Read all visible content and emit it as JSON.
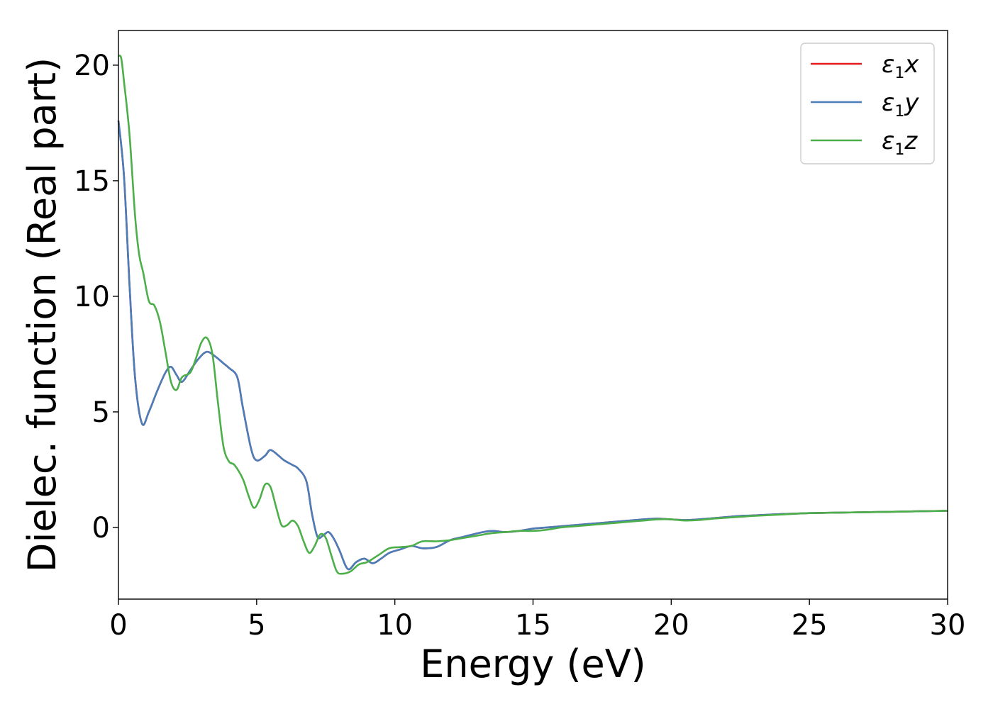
{
  "chart_data": {
    "type": "line",
    "xlabel": "Energy (eV)",
    "ylabel": "Dielec. function (Real part)",
    "xlim": [
      0,
      30
    ],
    "ylim": [
      -3.1,
      21.5
    ],
    "xticks": [
      0,
      5,
      10,
      15,
      20,
      25,
      30
    ],
    "yticks": [
      0,
      5,
      10,
      15,
      20
    ],
    "grid": false,
    "legend_position": "top-right",
    "series": [
      {
        "name": "ε1x",
        "legend_base": "ε",
        "legend_sub": "1",
        "legend_var": "x",
        "color": "#e41a1c",
        "x": [
          0,
          0.2,
          0.4,
          0.6,
          0.85,
          1.1,
          1.4,
          1.7,
          1.9,
          2.1,
          2.3,
          2.6,
          2.9,
          3.2,
          3.5,
          3.8,
          4.0,
          4.3,
          4.5,
          4.8,
          5.0,
          5.3,
          5.5,
          5.8,
          6.0,
          6.3,
          6.5,
          6.8,
          7.0,
          7.2,
          7.4,
          7.6,
          7.8,
          8.0,
          8.3,
          8.6,
          8.9,
          9.2,
          9.5,
          9.8,
          10.2,
          10.6,
          11.0,
          11.5,
          12.0,
          12.5,
          13.0,
          13.5,
          14.0,
          14.5,
          15.0,
          15.5,
          16.0,
          16.5,
          17.0,
          17.5,
          18.0,
          18.5,
          19.0,
          19.5,
          20.0,
          20.5,
          21.0,
          21.5,
          22.0,
          22.5,
          23.0,
          24.0,
          25.0,
          26.0,
          27.0,
          28.0,
          29.0,
          30.0
        ],
        "y": [
          17.6,
          15.2,
          10.5,
          6.5,
          4.5,
          5.0,
          5.9,
          6.7,
          6.95,
          6.6,
          6.3,
          6.8,
          7.3,
          7.6,
          7.4,
          7.1,
          6.9,
          6.5,
          5.2,
          3.4,
          2.9,
          3.1,
          3.35,
          3.1,
          2.9,
          2.7,
          2.55,
          2.0,
          0.6,
          -0.4,
          -0.35,
          -0.2,
          -0.5,
          -1.0,
          -1.8,
          -1.5,
          -1.35,
          -1.55,
          -1.35,
          -1.1,
          -0.95,
          -0.8,
          -0.9,
          -0.85,
          -0.55,
          -0.4,
          -0.25,
          -0.15,
          -0.2,
          -0.15,
          -0.05,
          0.0,
          0.05,
          0.1,
          0.15,
          0.2,
          0.25,
          0.3,
          0.35,
          0.38,
          0.35,
          0.32,
          0.35,
          0.4,
          0.45,
          0.5,
          0.52,
          0.58,
          0.62,
          0.64,
          0.66,
          0.68,
          0.7,
          0.72
        ]
      },
      {
        "name": "ε1y",
        "legend_base": "ε",
        "legend_sub": "1",
        "legend_var": "y",
        "color": "#4a7ebb",
        "x": [
          0,
          0.2,
          0.4,
          0.6,
          0.85,
          1.1,
          1.4,
          1.7,
          1.9,
          2.1,
          2.3,
          2.6,
          2.9,
          3.2,
          3.5,
          3.8,
          4.0,
          4.3,
          4.5,
          4.8,
          5.0,
          5.3,
          5.5,
          5.8,
          6.0,
          6.3,
          6.5,
          6.8,
          7.0,
          7.2,
          7.4,
          7.6,
          7.8,
          8.0,
          8.3,
          8.6,
          8.9,
          9.2,
          9.5,
          9.8,
          10.2,
          10.6,
          11.0,
          11.5,
          12.0,
          12.5,
          13.0,
          13.5,
          14.0,
          14.5,
          15.0,
          15.5,
          16.0,
          16.5,
          17.0,
          17.5,
          18.0,
          18.5,
          19.0,
          19.5,
          20.0,
          20.5,
          21.0,
          21.5,
          22.0,
          22.5,
          23.0,
          24.0,
          25.0,
          26.0,
          27.0,
          28.0,
          29.0,
          30.0
        ],
        "y": [
          17.6,
          15.2,
          10.5,
          6.5,
          4.5,
          5.0,
          5.9,
          6.7,
          6.95,
          6.6,
          6.3,
          6.8,
          7.3,
          7.6,
          7.4,
          7.1,
          6.9,
          6.5,
          5.2,
          3.4,
          2.9,
          3.1,
          3.35,
          3.1,
          2.9,
          2.7,
          2.55,
          2.0,
          0.6,
          -0.4,
          -0.35,
          -0.2,
          -0.5,
          -1.0,
          -1.8,
          -1.5,
          -1.35,
          -1.55,
          -1.35,
          -1.1,
          -0.95,
          -0.8,
          -0.9,
          -0.85,
          -0.55,
          -0.4,
          -0.25,
          -0.15,
          -0.2,
          -0.15,
          -0.05,
          0.0,
          0.05,
          0.1,
          0.15,
          0.2,
          0.25,
          0.3,
          0.35,
          0.38,
          0.35,
          0.32,
          0.35,
          0.4,
          0.45,
          0.5,
          0.52,
          0.58,
          0.62,
          0.64,
          0.66,
          0.68,
          0.7,
          0.72
        ]
      },
      {
        "name": "ε1z",
        "legend_base": "ε",
        "legend_sub": "1",
        "legend_var": "z",
        "color": "#4daf4a",
        "x": [
          0,
          0.1,
          0.2,
          0.4,
          0.6,
          0.75,
          0.9,
          1.1,
          1.3,
          1.5,
          1.7,
          1.9,
          2.1,
          2.3,
          2.6,
          2.8,
          3.0,
          3.2,
          3.4,
          3.6,
          3.8,
          4.0,
          4.2,
          4.5,
          4.7,
          4.9,
          5.1,
          5.3,
          5.5,
          5.7,
          5.9,
          6.1,
          6.3,
          6.5,
          6.7,
          6.9,
          7.1,
          7.3,
          7.5,
          7.7,
          7.9,
          8.1,
          8.4,
          8.7,
          9.0,
          9.4,
          9.8,
          10.2,
          10.6,
          11.0,
          11.5,
          12.0,
          12.5,
          13.0,
          13.5,
          14.0,
          14.5,
          15.0,
          15.5,
          16.0,
          16.5,
          17.0,
          17.5,
          18.0,
          18.5,
          19.0,
          19.5,
          20.0,
          20.5,
          21.0,
          21.5,
          22.0,
          22.5,
          23.0,
          24.0,
          25.0,
          26.0,
          27.0,
          28.0,
          29.0,
          30.0
        ],
        "y": [
          20.4,
          20.3,
          19.3,
          17.0,
          13.5,
          11.8,
          11.0,
          9.8,
          9.6,
          8.9,
          7.6,
          6.3,
          5.95,
          6.5,
          6.7,
          7.3,
          8.0,
          8.2,
          7.5,
          5.4,
          3.5,
          2.85,
          2.7,
          2.1,
          1.4,
          0.85,
          1.2,
          1.85,
          1.75,
          0.9,
          0.1,
          0.1,
          0.3,
          0.05,
          -0.6,
          -1.1,
          -0.8,
          -0.3,
          -0.45,
          -1.2,
          -1.9,
          -2.0,
          -1.9,
          -1.6,
          -1.5,
          -1.2,
          -0.9,
          -0.85,
          -0.8,
          -0.6,
          -0.6,
          -0.55,
          -0.45,
          -0.35,
          -0.25,
          -0.2,
          -0.15,
          -0.15,
          -0.1,
          0.0,
          0.05,
          0.1,
          0.15,
          0.2,
          0.25,
          0.3,
          0.35,
          0.35,
          0.3,
          0.32,
          0.38,
          0.42,
          0.46,
          0.5,
          0.56,
          0.62,
          0.64,
          0.66,
          0.68,
          0.7,
          0.72
        ]
      }
    ]
  }
}
